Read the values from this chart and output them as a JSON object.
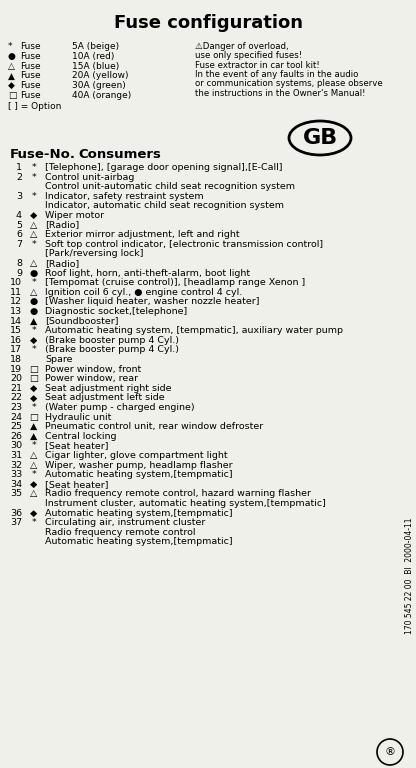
{
  "title": "Fuse configuration",
  "bg_color": "#f0f0eb",
  "legend_syms": [
    "*",
    "●",
    "△",
    "▲",
    "◆",
    "□"
  ],
  "legend_amperages": [
    "5A (beige)",
    "10A (red)",
    "15A (blue)",
    "20A (yellow)",
    "30A (green)",
    "40A (orange)"
  ],
  "danger_text": [
    "⚠Danger of overload,",
    "use only specified fuses!",
    "Fuse extractor in car tool kit!",
    "In the event of any faults in the audio",
    "or communication systems, please observe",
    "the instructions in the Owner's Manual!"
  ],
  "option_text": "[ ] = Option",
  "header_fuse": "Fuse-No.",
  "header_consumers": "Consumers",
  "gb_label": "GB",
  "fuses": [
    {
      "num": "1",
      "sym": "*",
      "desc": "[Telephone], [garage door opening signal],[E-Call]",
      "lines": 1
    },
    {
      "num": "2",
      "sym": "*",
      "desc": "Control unit-airbag\nControl unit-automatic child seat recognition system",
      "lines": 2
    },
    {
      "num": "3",
      "sym": "*",
      "desc": "Indicator, safety restraint system\nIndicator, automatic child seat recognition system",
      "lines": 2
    },
    {
      "num": "4",
      "sym": "◆",
      "desc": "Wiper motor",
      "lines": 1
    },
    {
      "num": "5",
      "sym": "△",
      "desc": "[Radio]",
      "lines": 1
    },
    {
      "num": "6",
      "sym": "△",
      "desc": "Exterior mirror adjustment, left and right",
      "lines": 1
    },
    {
      "num": "7",
      "sym": "*",
      "desc": "Soft top control indicator, [electronic transmission control]\n[Park/reversing lock]",
      "lines": 2
    },
    {
      "num": "8",
      "sym": "△",
      "desc": "[Radio]",
      "lines": 1
    },
    {
      "num": "9",
      "sym": "●",
      "desc": "Roof light, horn, anti-theft-alarm, boot light",
      "lines": 1
    },
    {
      "num": "10",
      "sym": "*",
      "desc": "[Tempomat (cruise control)], [headlamp range Xenon ]",
      "lines": 1
    },
    {
      "num": "11",
      "sym": "△",
      "desc": "Ignition coil 6 cyl., ● engine control 4 cyl.",
      "lines": 1
    },
    {
      "num": "12",
      "sym": "●",
      "desc": "[Washer liquid heater, washer nozzle heater]",
      "lines": 1
    },
    {
      "num": "13",
      "sym": "●",
      "desc": "Diagnostic socket,[telephone]",
      "lines": 1
    },
    {
      "num": "14",
      "sym": "▲",
      "desc": "[Soundbooster]",
      "lines": 1
    },
    {
      "num": "15",
      "sym": "*",
      "desc": "Automatic heating system, [tempmatic], auxiliary water pump",
      "lines": 1
    },
    {
      "num": "16",
      "sym": "◆",
      "desc": "(Brake booster pump 4 Cyl.)",
      "lines": 1
    },
    {
      "num": "17",
      "sym": "*",
      "desc": "(Brake booster pump 4 Cyl.)",
      "lines": 1
    },
    {
      "num": "18",
      "sym": "",
      "desc": "Spare",
      "lines": 1
    },
    {
      "num": "19",
      "sym": "□",
      "desc": "Power window, front",
      "lines": 1
    },
    {
      "num": "20",
      "sym": "□",
      "desc": "Power window, rear",
      "lines": 1
    },
    {
      "num": "21",
      "sym": "◆",
      "desc": "Seat adjustment right side",
      "lines": 1
    },
    {
      "num": "22",
      "sym": "◆",
      "desc": "Seat adjustment left side",
      "lines": 1
    },
    {
      "num": "23",
      "sym": "*",
      "desc": "(Water pump - charged engine)",
      "lines": 1
    },
    {
      "num": "24",
      "sym": "□",
      "desc": "Hydraulic unit",
      "lines": 1
    },
    {
      "num": "25",
      "sym": "▲",
      "desc": "Pneumatic control unit, rear window defroster",
      "lines": 1
    },
    {
      "num": "26",
      "sym": "▲",
      "desc": "Central locking",
      "lines": 1
    },
    {
      "num": "30",
      "sym": "*",
      "desc": "[Seat heater]",
      "lines": 1
    },
    {
      "num": "31",
      "sym": "△",
      "desc": "Cigar lighter, glove compartment light",
      "lines": 1
    },
    {
      "num": "32",
      "sym": "△",
      "desc": "Wiper, washer pump, headlamp flasher",
      "lines": 1
    },
    {
      "num": "33",
      "sym": "*",
      "desc": "Automatic heating system,[tempmatic]",
      "lines": 1
    },
    {
      "num": "34",
      "sym": "◆",
      "desc": "[Seat heater]",
      "lines": 1
    },
    {
      "num": "35",
      "sym": "△",
      "desc": "Radio frequency remote control, hazard warning flasher\nInstrument cluster, automatic heating system,[tempmatic]",
      "lines": 2
    },
    {
      "num": "36",
      "sym": "◆",
      "desc": "Automatic heating system,[tempmatic]",
      "lines": 1
    },
    {
      "num": "37",
      "sym": "*",
      "desc": "Circulating air, instrument cluster\nRadio frequency remote control\nAutomatic heating system,[tempmatic]",
      "lines": 3
    }
  ],
  "footer_text": "170 545 22 00  BI  2000-04-11",
  "mercedes_symbol": "®"
}
